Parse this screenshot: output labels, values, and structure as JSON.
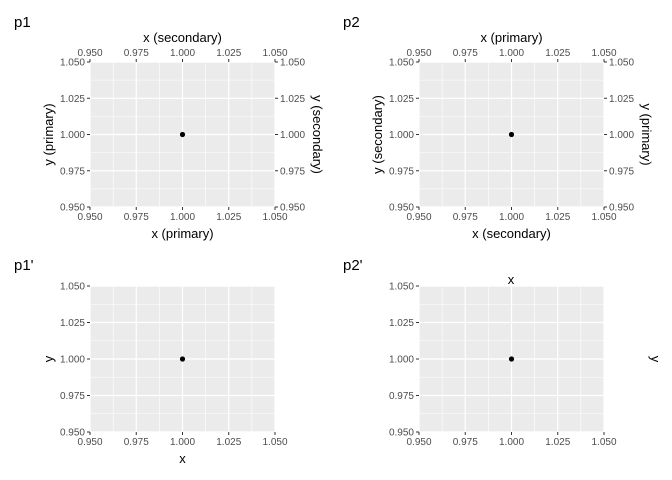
{
  "chart_data": [
    {
      "type": "scatter",
      "tag": "p1",
      "points": [
        {
          "x": 1.0,
          "y": 1.0
        }
      ],
      "xlim": [
        0.95,
        1.05
      ],
      "ylim": [
        0.95,
        1.05
      ],
      "x_ticks": [
        "0.950",
        "0.975",
        "1.000",
        "1.025",
        "1.050"
      ],
      "y_ticks": [
        "0.950",
        "0.975",
        "1.000",
        "1.025",
        "1.050"
      ],
      "axes": {
        "bottom": "x (primary)",
        "top": "x (secondary)",
        "left": "y (primary)",
        "right": "y (secondary)"
      },
      "tick_sides": {
        "bottom": true,
        "top": true,
        "left": true,
        "right": true
      }
    },
    {
      "type": "scatter",
      "tag": "p2",
      "points": [
        {
          "x": 1.0,
          "y": 1.0
        }
      ],
      "xlim": [
        0.95,
        1.05
      ],
      "ylim": [
        0.95,
        1.05
      ],
      "x_ticks": [
        "0.950",
        "0.975",
        "1.000",
        "1.025",
        "1.050"
      ],
      "y_ticks": [
        "0.950",
        "0.975",
        "1.000",
        "1.025",
        "1.050"
      ],
      "axes": {
        "bottom": "x (secondary)",
        "top": "x (primary)",
        "left": "y (secondary)",
        "right": "y (primary)"
      },
      "tick_sides": {
        "bottom": true,
        "top": true,
        "left": true,
        "right": true
      }
    },
    {
      "type": "scatter",
      "tag": "p1'",
      "points": [
        {
          "x": 1.0,
          "y": 1.0
        }
      ],
      "xlim": [
        0.95,
        1.05
      ],
      "ylim": [
        0.95,
        1.05
      ],
      "x_ticks": [
        "0.950",
        "0.975",
        "1.000",
        "1.025",
        "1.050"
      ],
      "y_ticks": [
        "0.950",
        "0.975",
        "1.000",
        "1.025",
        "1.050"
      ],
      "axes": {
        "bottom": "x",
        "top": "",
        "left": "y",
        "right": ""
      },
      "tick_sides": {
        "bottom": true,
        "top": false,
        "left": true,
        "right": false
      }
    },
    {
      "type": "scatter",
      "tag": "p2'",
      "points": [
        {
          "x": 1.0,
          "y": 1.0
        }
      ],
      "xlim": [
        0.95,
        1.05
      ],
      "ylim": [
        0.95,
        1.05
      ],
      "x_ticks": [
        "0.950",
        "0.975",
        "1.000",
        "1.025",
        "1.050"
      ],
      "y_ticks": [
        "0.950",
        "0.975",
        "1.000",
        "1.025",
        "1.050"
      ],
      "axes": {
        "bottom": "",
        "top": "x",
        "left": "",
        "right": "y"
      },
      "tick_sides": {
        "bottom": true,
        "top": false,
        "left": true,
        "right": false
      }
    }
  ],
  "colors": {
    "panel": "#ebebeb",
    "grid_major": "#ffffff",
    "point": "#000000"
  }
}
